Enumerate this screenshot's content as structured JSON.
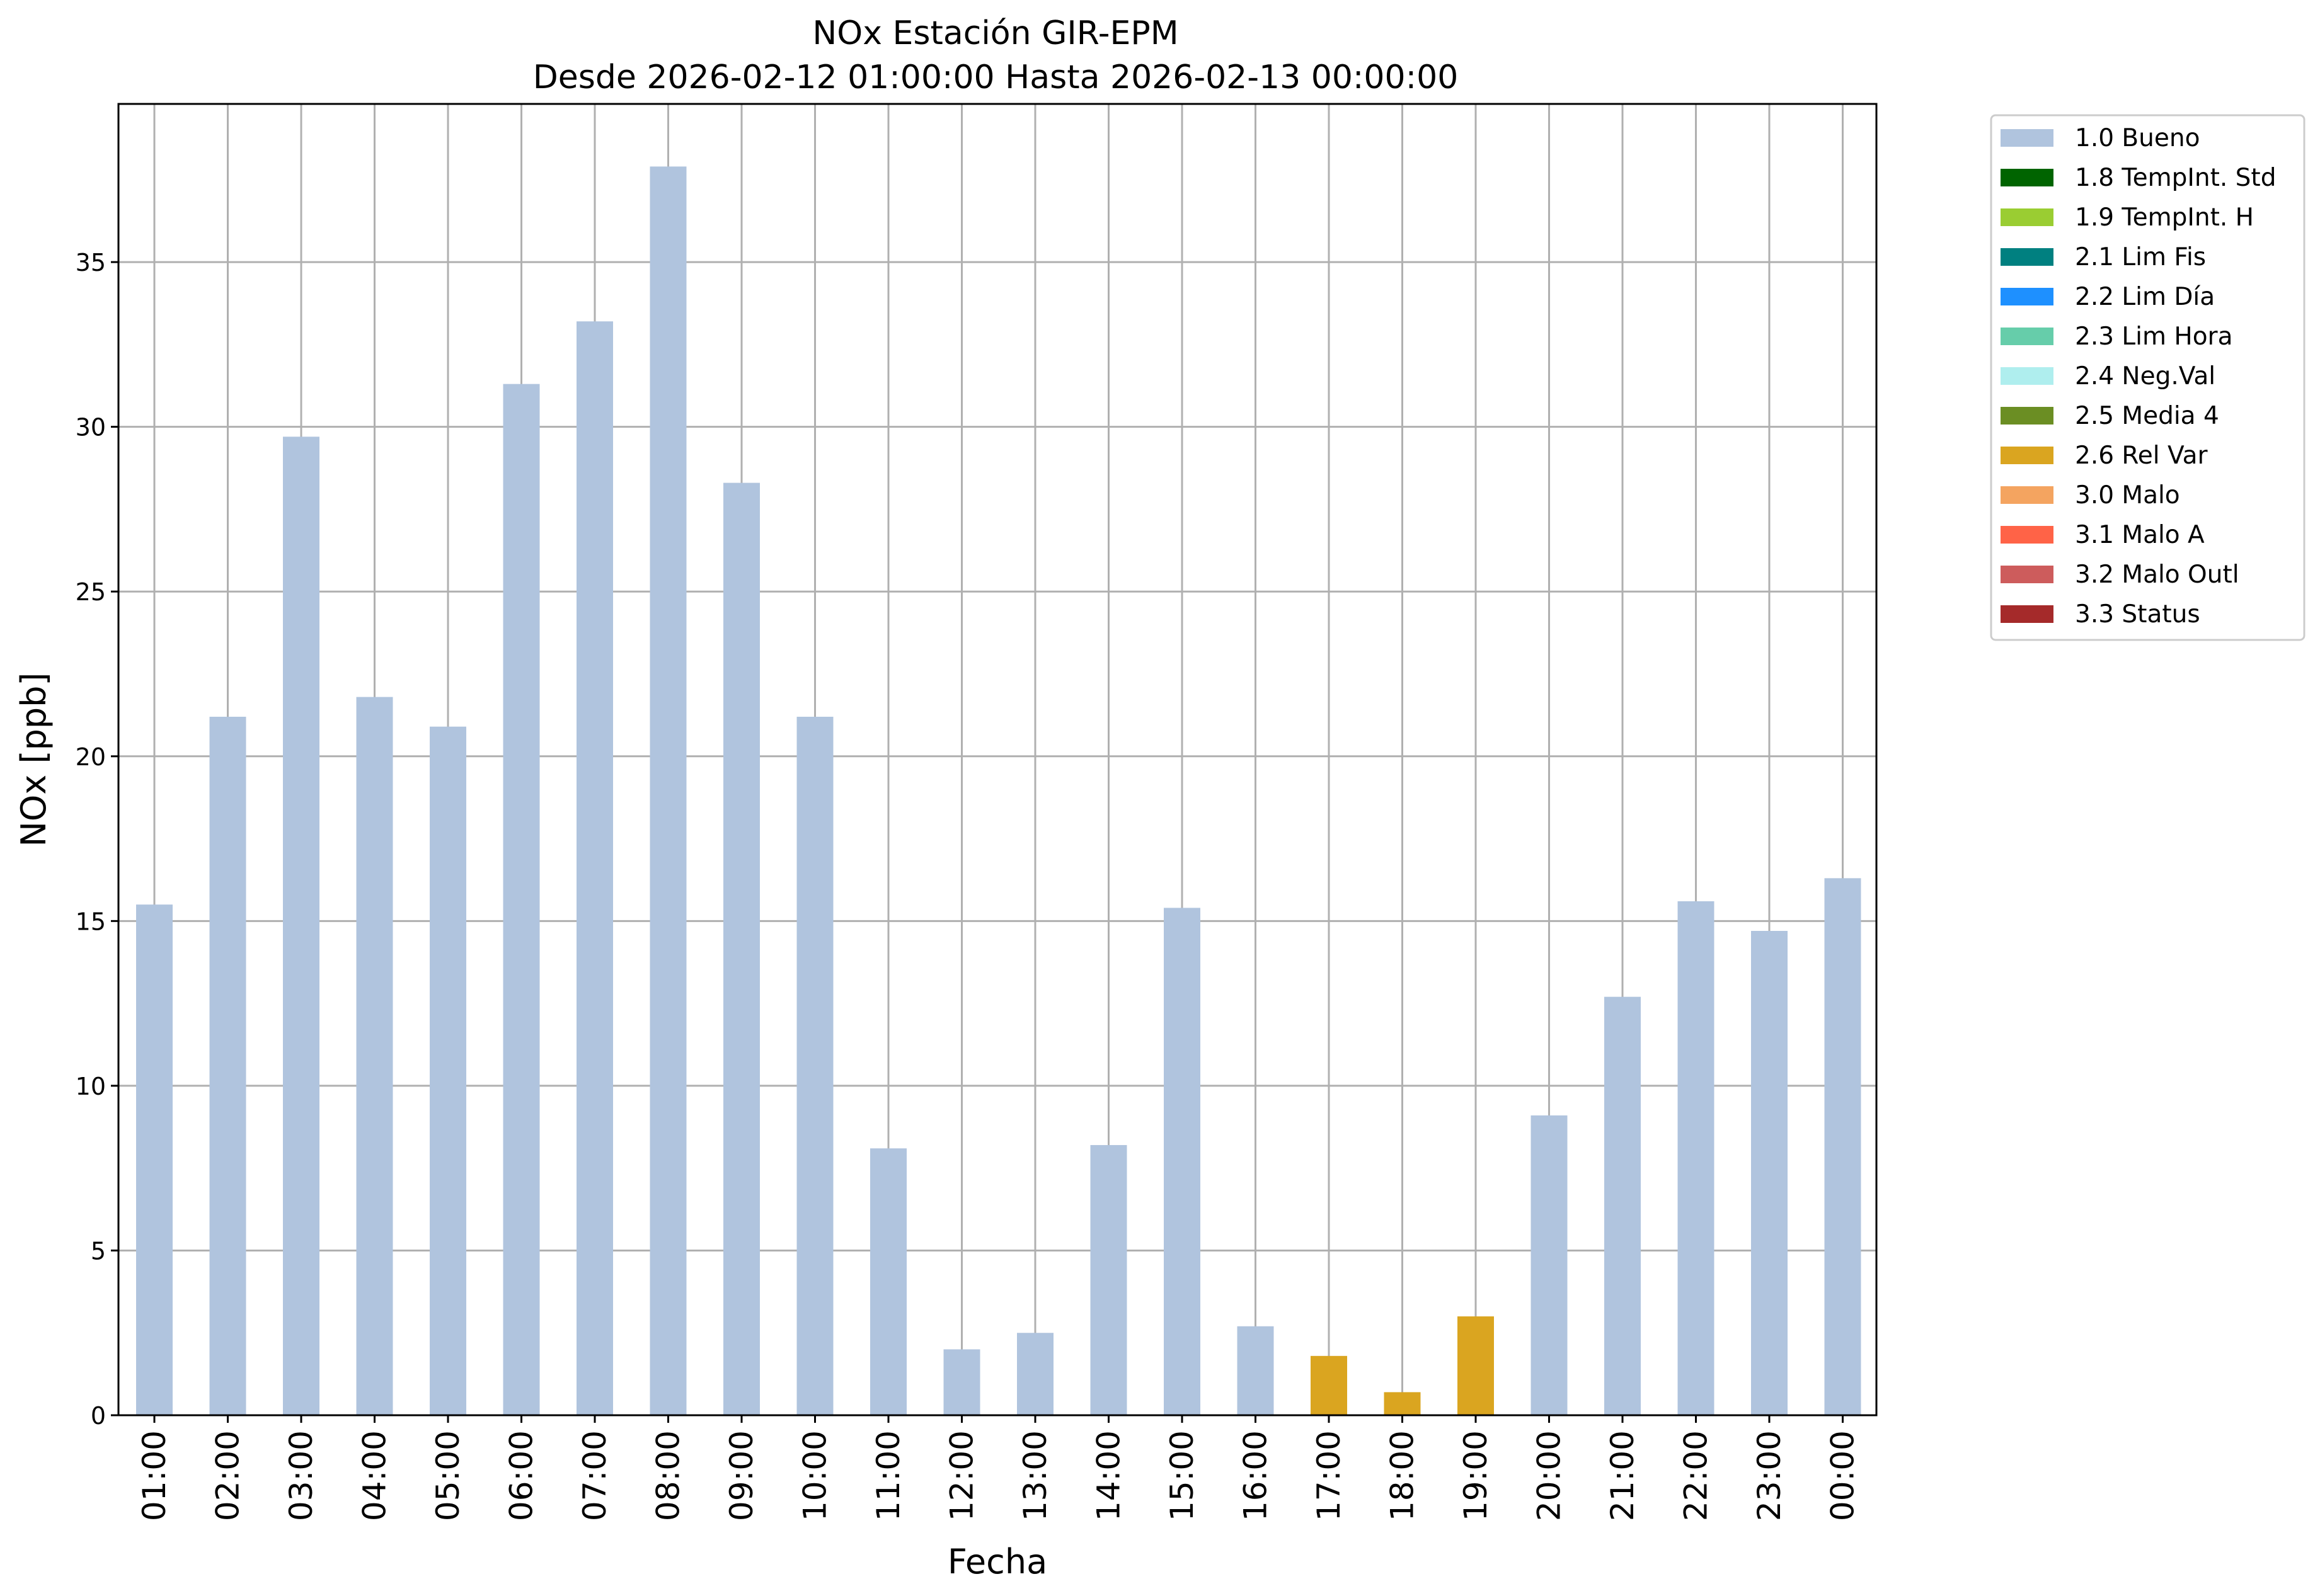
{
  "chart_data": {
    "type": "bar",
    "title": "NOx Estación GIR-EPM",
    "subtitle": "Desde 2026-02-12 01:00:00 Hasta 2026-02-13 00:00:00",
    "xlabel": "Fecha",
    "ylabel": "NOx [ppb]",
    "ylim": [
      0,
      39.8
    ],
    "yticks": [
      0,
      5,
      10,
      15,
      20,
      25,
      30,
      35
    ],
    "grid": true,
    "legend_position": "outside-right",
    "categories": [
      "01:00",
      "02:00",
      "03:00",
      "04:00",
      "05:00",
      "06:00",
      "07:00",
      "08:00",
      "09:00",
      "10:00",
      "11:00",
      "12:00",
      "13:00",
      "14:00",
      "15:00",
      "16:00",
      "17:00",
      "18:00",
      "19:00",
      "20:00",
      "21:00",
      "22:00",
      "23:00",
      "00:00"
    ],
    "values": [
      15.5,
      21.2,
      29.7,
      21.8,
      20.9,
      31.3,
      33.2,
      37.9,
      28.3,
      21.2,
      8.1,
      2.0,
      2.5,
      8.2,
      15.4,
      2.7,
      1.8,
      0.7,
      3.0,
      9.1,
      12.7,
      15.6,
      14.7,
      16.3
    ],
    "flags": [
      "1.0 Bueno",
      "1.0 Bueno",
      "1.0 Bueno",
      "1.0 Bueno",
      "1.0 Bueno",
      "1.0 Bueno",
      "1.0 Bueno",
      "1.0 Bueno",
      "1.0 Bueno",
      "1.0 Bueno",
      "1.0 Bueno",
      "1.0 Bueno",
      "1.0 Bueno",
      "1.0 Bueno",
      "1.0 Bueno",
      "1.0 Bueno",
      "2.6 Rel Var",
      "2.6 Rel Var",
      "2.6 Rel Var",
      "1.0 Bueno",
      "1.0 Bueno",
      "1.0 Bueno",
      "1.0 Bueno",
      "1.0 Bueno"
    ],
    "legend": [
      {
        "name": "1.0 Bueno",
        "color": "#b0c4de"
      },
      {
        "name": "1.8 TempInt. Std",
        "color": "#006400"
      },
      {
        "name": "1.9 TempInt. H",
        "color": "#9acd32"
      },
      {
        "name": "2.1 Lim Fis",
        "color": "#008080"
      },
      {
        "name": "2.2 Lim Día",
        "color": "#1e90ff"
      },
      {
        "name": "2.3 Lim Hora",
        "color": "#66cdaa"
      },
      {
        "name": "2.4 Neg.Val",
        "color": "#afeeee"
      },
      {
        "name": "2.5 Media 4",
        "color": "#6b8e23"
      },
      {
        "name": "2.6 Rel Var",
        "color": "#daa520"
      },
      {
        "name": "3.0 Malo",
        "color": "#f4a460"
      },
      {
        "name": "3.1 Malo A",
        "color": "#ff6347"
      },
      {
        "name": "3.2 Malo Outl",
        "color": "#cd5c5c"
      },
      {
        "name": "3.3 Status",
        "color": "#a52a2a"
      }
    ]
  }
}
